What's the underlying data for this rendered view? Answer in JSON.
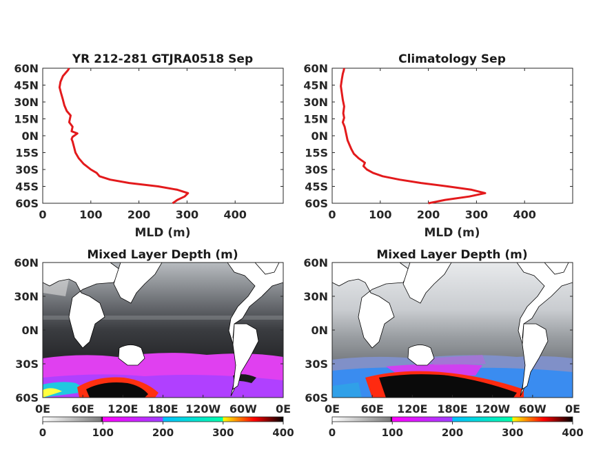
{
  "colorbar": {
    "ticks": [
      "0",
      "100",
      "200",
      "300",
      "400"
    ],
    "stops": [
      "#ffffff",
      "#7f7f7f",
      "#000000",
      "#ff00ff",
      "#00bfff",
      "#0000ff",
      "#00ffaa",
      "#ffff00",
      "#ff0000",
      "#000000"
    ]
  },
  "chart_data": [
    {
      "type": "line",
      "title": "YR 212-281 GTJRA0518 Sep",
      "xlabel": "MLD (m)",
      "ylabel": "",
      "xlim": [
        0,
        500
      ],
      "ylim": [
        -60,
        60
      ],
      "xticks": [
        "0",
        "100",
        "200",
        "300",
        "400"
      ],
      "yticks": [
        "60N",
        "45N",
        "30N",
        "15N",
        "0N",
        "15S",
        "30S",
        "45S",
        "60S"
      ],
      "line_color": "#e31a1c",
      "series": [
        {
          "x": [
            270,
            280,
            295,
            302,
            280,
            240,
            180,
            140,
            118,
            112,
            100,
            85,
            75,
            68,
            65,
            62,
            60,
            62,
            72,
            60,
            62,
            55,
            58,
            50,
            45,
            42,
            38,
            35,
            37,
            42,
            48,
            52,
            55
          ],
          "y": [
            -60,
            -57,
            -54,
            -51,
            -48,
            -45,
            -42,
            -39,
            -36,
            -33,
            -30,
            -25,
            -20,
            -15,
            -10,
            -5,
            -3,
            -1,
            2,
            4,
            8,
            12,
            18,
            22,
            27,
            32,
            38,
            43,
            48,
            53,
            56,
            58,
            60
          ]
        }
      ]
    },
    {
      "type": "line",
      "title": "Climatology Sep",
      "xlabel": "MLD (m)",
      "ylabel": "",
      "xlim": [
        0,
        500
      ],
      "ylim": [
        -60,
        60
      ],
      "xticks": [
        "0",
        "100",
        "200",
        "300",
        "400"
      ],
      "yticks": [
        "60N",
        "45N",
        "30N",
        "15N",
        "0N",
        "15S",
        "30S",
        "45S",
        "60S"
      ],
      "line_color": "#e31a1c",
      "series": [
        {
          "x": [
            200,
            235,
            285,
            318,
            290,
            240,
            185,
            140,
            105,
            85,
            72,
            65,
            68,
            55,
            45,
            40,
            36,
            32,
            30,
            28,
            26,
            22,
            25,
            23,
            25,
            22,
            20,
            18,
            20,
            22,
            24,
            25
          ],
          "y": [
            -60,
            -57,
            -54,
            -51,
            -48,
            -45,
            -42,
            -39,
            -36,
            -33,
            -30,
            -27,
            -24,
            -20,
            -16,
            -12,
            -8,
            -4,
            0,
            4,
            8,
            12,
            16,
            20,
            26,
            32,
            38,
            44,
            50,
            55,
            58,
            60
          ]
        }
      ]
    },
    {
      "type": "heatmap",
      "title": "Mixed Layer Depth (m)",
      "xticks": [
        "0E",
        "60E",
        "120E",
        "180E",
        "120W",
        "60W",
        "0E"
      ],
      "yticks": [
        "60N",
        "30N",
        "0N",
        "30S",
        "60S"
      ],
      "value_range": [
        0,
        400
      ]
    },
    {
      "type": "heatmap",
      "title": "Mixed Layer Depth (m)",
      "xticks": [
        "0E",
        "60E",
        "120E",
        "180E",
        "120W",
        "60W",
        "0E"
      ],
      "yticks": [
        "60N",
        "30N",
        "0N",
        "30S",
        "60S"
      ],
      "value_range": [
        0,
        400
      ]
    }
  ]
}
